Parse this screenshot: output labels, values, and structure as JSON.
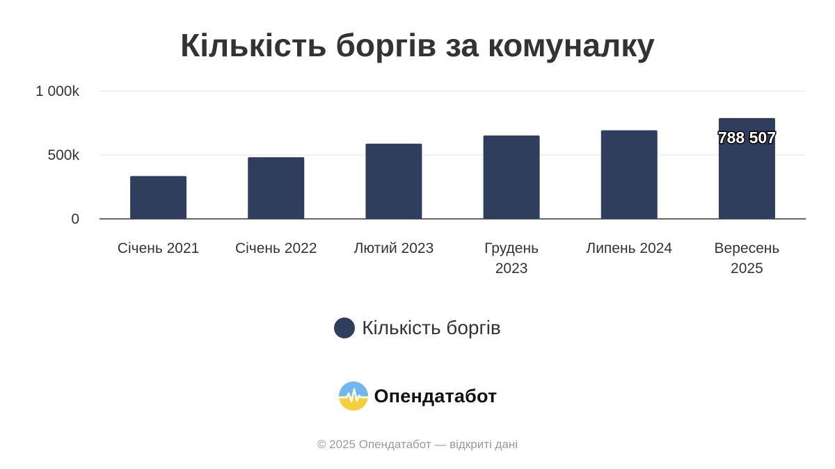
{
  "chart_data": {
    "type": "bar",
    "title": "Кількість боргів за комуналку",
    "categories": [
      [
        "Січень 2021"
      ],
      [
        "Січень 2022"
      ],
      [
        "Лютий 2023"
      ],
      [
        "Грудень",
        "2023"
      ],
      [
        "Липень 2024"
      ],
      [
        "Вересень",
        "2025"
      ]
    ],
    "series": [
      {
        "name": "Кількість боргів",
        "values": [
          335000,
          482000,
          588000,
          652000,
          693000,
          788507
        ]
      }
    ],
    "yticks": [
      {
        "value": 0,
        "label": "0"
      },
      {
        "value": 500000,
        "label": "500k"
      },
      {
        "value": 1000000,
        "label": "1 000k"
      }
    ],
    "ylim": [
      0,
      1000000
    ],
    "data_labels": [
      {
        "index": 5,
        "text": "788 507"
      }
    ],
    "grid": true,
    "legend_position": "bottom",
    "colors": {
      "bar": "#2f3e5c",
      "grid": "#e6e6e6",
      "axis": "#333333"
    }
  },
  "brand": {
    "name": "Опендатабот",
    "logo_icon": "opendatabot-logo-icon"
  },
  "footer": {
    "text": "© 2025 Опендатабот — відкриті дані"
  }
}
